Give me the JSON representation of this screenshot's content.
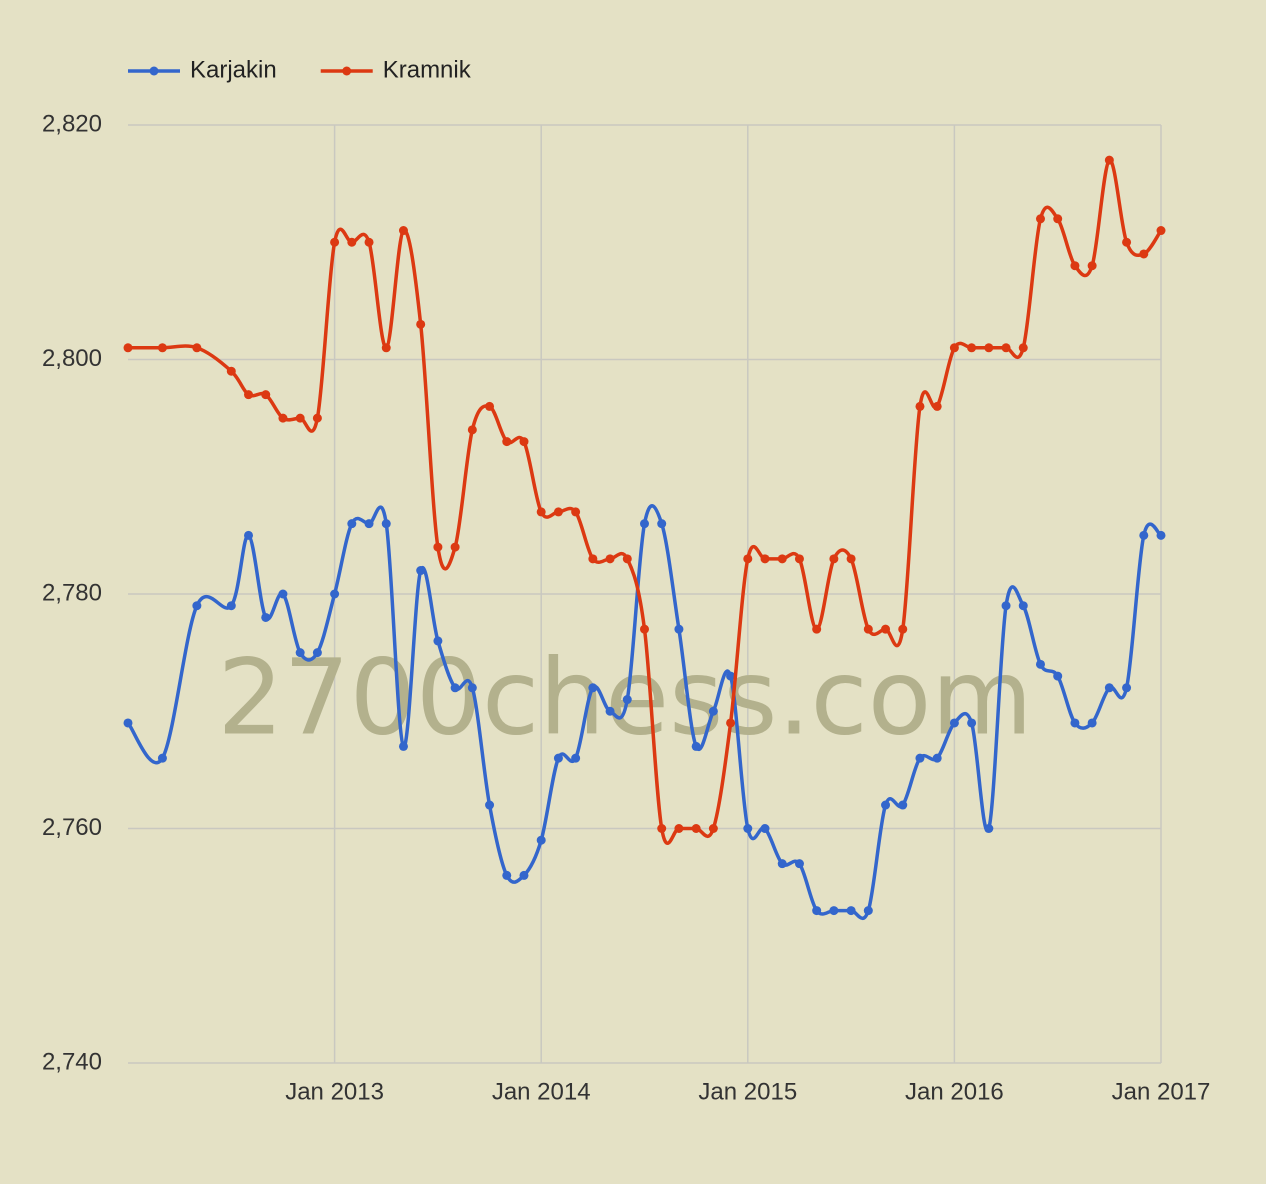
{
  "chart_data": {
    "type": "line",
    "watermark": "2700chess.com",
    "x": [
      "2012-01",
      "2012-03",
      "2012-05",
      "2012-07",
      "2012-08",
      "2012-09",
      "2012-10",
      "2012-11",
      "2012-12",
      "2013-01",
      "2013-02",
      "2013-03",
      "2013-04",
      "2013-05",
      "2013-06",
      "2013-07",
      "2013-08",
      "2013-09",
      "2013-10",
      "2013-11",
      "2013-12",
      "2014-01",
      "2014-02",
      "2014-03",
      "2014-04",
      "2014-05",
      "2014-06",
      "2014-07",
      "2014-08",
      "2014-09",
      "2014-10",
      "2014-11",
      "2014-12",
      "2015-01",
      "2015-02",
      "2015-03",
      "2015-04",
      "2015-05",
      "2015-06",
      "2015-07",
      "2015-08",
      "2015-09",
      "2015-10",
      "2015-11",
      "2015-12",
      "2016-01",
      "2016-02",
      "2016-03",
      "2016-04",
      "2016-05",
      "2016-06",
      "2016-07",
      "2016-08",
      "2016-09",
      "2016-10",
      "2016-11",
      "2016-12",
      "2017-01"
    ],
    "series": [
      {
        "name": "Karjakin",
        "color": "#3366cc",
        "values": [
          2769,
          2766,
          2779,
          2779,
          2785,
          2778,
          2780,
          2775,
          2775,
          2780,
          2786,
          2786,
          2786,
          2767,
          2782,
          2776,
          2772,
          2772,
          2762,
          2756,
          2756,
          2759,
          2766,
          2766,
          2772,
          2770,
          2771,
          2786,
          2786,
          2777,
          2767,
          2770,
          2773,
          2760,
          2760,
          2757,
          2757,
          2753,
          2753,
          2753,
          2753,
          2762,
          2762,
          2766,
          2766,
          2769,
          2769,
          2760,
          2779,
          2779,
          2774,
          2773,
          2769,
          2769,
          2772,
          2772,
          2785,
          2785
        ]
      },
      {
        "name": "Kramnik",
        "color": "#dc3912",
        "values": [
          2801,
          2801,
          2801,
          2799,
          2797,
          2797,
          2795,
          2795,
          2795,
          2810,
          2810,
          2810,
          2801,
          2811,
          2803,
          2784,
          2784,
          2794,
          2796,
          2793,
          2793,
          2787,
          2787,
          2787,
          2783,
          2783,
          2783,
          2777,
          2760,
          2760,
          2760,
          2760,
          2769,
          2783,
          2783,
          2783,
          2783,
          2777,
          2783,
          2783,
          2777,
          2777,
          2777,
          2796,
          2796,
          2801,
          2801,
          2801,
          2801,
          2801,
          2812,
          2812,
          2808,
          2808,
          2817,
          2810,
          2809,
          2811
        ]
      }
    ],
    "xlim": [
      "2012-01",
      "2017-01"
    ],
    "xticks": [
      {
        "value": "2013-01",
        "label": "Jan 2013"
      },
      {
        "value": "2014-01",
        "label": "Jan 2014"
      },
      {
        "value": "2015-01",
        "label": "Jan 2015"
      },
      {
        "value": "2016-01",
        "label": "Jan 2016"
      },
      {
        "value": "2017-01",
        "label": "Jan 2017"
      }
    ],
    "ylim": [
      2740,
      2820
    ],
    "yticks": [
      {
        "value": 2740,
        "label": "2,740"
      },
      {
        "value": 2760,
        "label": "2,760"
      },
      {
        "value": 2780,
        "label": "2,780"
      },
      {
        "value": 2800,
        "label": "2,800"
      },
      {
        "value": 2820,
        "label": "2,820"
      }
    ],
    "grid": true,
    "legend": "top-left"
  }
}
